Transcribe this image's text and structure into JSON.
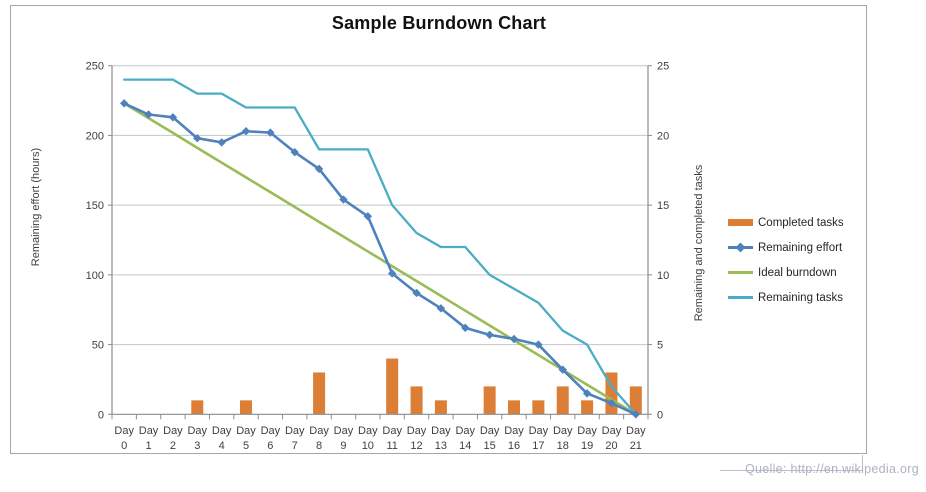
{
  "attribution": "Quelle: http://en.wikipedia.org",
  "chart_data": {
    "type": "combo",
    "title": "Sample Burndown Chart",
    "categories": [
      "Day 0",
      "Day 1",
      "Day 2",
      "Day 3",
      "Day 4",
      "Day 5",
      "Day 6",
      "Day 7",
      "Day 8",
      "Day 9",
      "Day 10",
      "Day 11",
      "Day 12",
      "Day 13",
      "Day 14",
      "Day 15",
      "Day 16",
      "Day 17",
      "Day 18",
      "Day 19",
      "Day 20",
      "Day 21"
    ],
    "left_axis": {
      "title": "Remaining effort (hours)",
      "min": 0,
      "max": 250,
      "step": 50,
      "ticks": [
        250,
        200,
        150,
        100,
        50,
        0
      ]
    },
    "right_axis": {
      "title": "Remaining and completed tasks",
      "min": 0,
      "max": 25,
      "step": 5,
      "ticks": [
        25,
        20,
        15,
        10,
        5,
        0
      ]
    },
    "grid": true,
    "legend_position": "right",
    "series": [
      {
        "name": "Completed tasks",
        "type": "bar",
        "marker": "none",
        "axis": "right",
        "color": "#DC7E35",
        "values": [
          0,
          0,
          0,
          1,
          0,
          1,
          0,
          0,
          3,
          0,
          0,
          4,
          2,
          1,
          0,
          2,
          1,
          1,
          2,
          1,
          3,
          2
        ]
      },
      {
        "name": "Remaining effort",
        "type": "line",
        "marker": "diamond",
        "axis": "left",
        "color": "#4F81BD",
        "values": [
          223,
          215,
          213,
          198,
          195,
          203,
          202,
          188,
          176,
          154,
          142,
          101,
          87,
          76,
          62,
          57,
          54,
          50,
          32,
          15,
          8,
          0
        ]
      },
      {
        "name": "Ideal burndown",
        "type": "line",
        "marker": "none",
        "axis": "left",
        "color": "#9BBB59",
        "values": [
          223,
          212.4,
          201.8,
          191.1,
          180.5,
          169.9,
          159.3,
          148.7,
          138,
          127.4,
          116.8,
          106.2,
          95.6,
          84.9,
          74.3,
          63.7,
          53.1,
          42.5,
          31.9,
          21.2,
          10.6,
          0
        ]
      },
      {
        "name": "Remaining tasks",
        "type": "line",
        "marker": "none",
        "axis": "right",
        "color": "#4BACC6",
        "values": [
          24,
          24,
          24,
          23,
          23,
          22,
          22,
          22,
          19,
          19,
          19,
          15,
          13,
          12,
          12,
          10,
          9,
          8,
          6,
          5,
          2,
          0
        ]
      }
    ]
  },
  "colors": {
    "grid": "#C6C6C6",
    "axis": "#8C8C8C",
    "tick_text": "#3F3F3F",
    "frame_border": "#A6A6A6",
    "attribution_text": "#AEB2C4"
  }
}
